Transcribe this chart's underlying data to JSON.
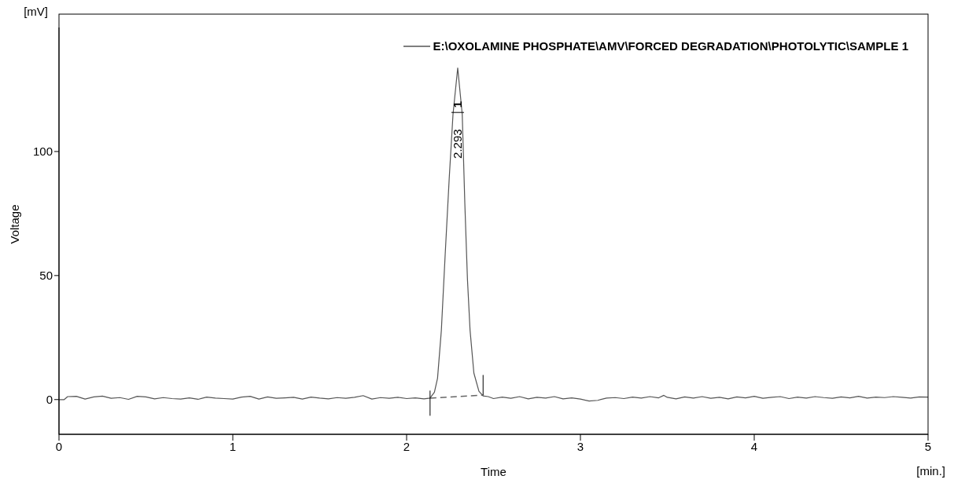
{
  "chart_data": {
    "type": "line",
    "xlabel": "Time",
    "ylabel": "Voltage",
    "xlim": [
      0,
      5
    ],
    "ylim": [
      -14,
      150
    ],
    "xticks": [
      0,
      1,
      2,
      3,
      4,
      5
    ],
    "yticks": [
      0,
      50,
      100
    ],
    "legend": "top right",
    "marker": "none",
    "line_style": "solid",
    "annotations": [
      "[mV]",
      "[min.]",
      {
        "text": "1",
        "x": 2.294,
        "y": 133.7
      },
      "2.293"
    ],
    "series": [
      {
        "name": "E:\\OXOLAMINE PHOSPHATE\\AMV\\FORCED DEGRADATION\\PHOTOLYTIC\\SAMPLE 1",
        "color": "#555555",
        "x": [
          0,
          0.03,
          0.05,
          0.1,
          0.15,
          0.2,
          0.25,
          0.3,
          0.35,
          0.4,
          0.45,
          0.5,
          0.55,
          0.6,
          0.65,
          0.7,
          0.75,
          0.8,
          0.85,
          0.9,
          0.95,
          1,
          1.05,
          1.1,
          1.15,
          1.2,
          1.25,
          1.3,
          1.35,
          1.4,
          1.45,
          1.5,
          1.55,
          1.6,
          1.65,
          1.7,
          1.75,
          1.8,
          1.85,
          1.9,
          1.95,
          2,
          2.05,
          2.1,
          2.135,
          2.16,
          2.178,
          2.2,
          2.222,
          2.245,
          2.267,
          2.294,
          2.32,
          2.335,
          2.35,
          2.365,
          2.387,
          2.416,
          2.44,
          2.47,
          2.5,
          2.55,
          2.6,
          2.65,
          2.7,
          2.75,
          2.8,
          2.85,
          2.9,
          2.95,
          3,
          3.05,
          3.1,
          3.15,
          3.2,
          3.25,
          3.3,
          3.35,
          3.4,
          3.45,
          3.48,
          3.5,
          3.55,
          3.6,
          3.65,
          3.7,
          3.75,
          3.8,
          3.85,
          3.9,
          3.95,
          4,
          4.05,
          4.1,
          4.15,
          4.2,
          4.25,
          4.3,
          4.35,
          4.4,
          4.45,
          4.5,
          4.55,
          4.6,
          4.65,
          4.7,
          4.75,
          4.8,
          4.85,
          4.9,
          4.95,
          5
        ],
        "values": [
          0,
          0,
          1.2,
          1.3,
          0.2,
          1.1,
          1.4,
          0.5,
          0.8,
          0.1,
          1.3,
          1.1,
          0.3,
          0.8,
          0.4,
          0.2,
          0.7,
          0.1,
          1,
          0.6,
          0.4,
          0.2,
          1,
          1.3,
          0.2,
          1.1,
          0.5,
          0.7,
          0.9,
          0.2,
          1,
          0.6,
          0.3,
          0.8,
          0.5,
          0.9,
          1.6,
          0.2,
          0.8,
          0.5,
          0.9,
          0.4,
          0.7,
          0.3,
          0.6,
          3,
          8.6,
          28,
          58.6,
          89,
          115,
          133.7,
          115,
          79,
          48.5,
          28,
          10.7,
          3.4,
          1.5,
          1.2,
          0.4,
          1,
          0.5,
          1.2,
          0.3,
          0.9,
          0.6,
          1.2,
          0.3,
          0.7,
          0.2,
          -0.6,
          -0.3,
          0.6,
          0.8,
          0.4,
          1,
          0.6,
          1.2,
          0.7,
          1.7,
          0.9,
          0.3,
          1.1,
          0.6,
          1.2,
          0.5,
          0.9,
          0.3,
          1.1,
          0.7,
          1.3,
          0.5,
          0.9,
          1.2,
          0.4,
          1,
          0.6,
          1.2,
          0.8,
          0.5,
          1.1,
          0.7,
          1.3,
          0.6,
          1,
          0.8,
          1.2,
          0.9,
          0.6,
          1.1,
          1
        ]
      },
      {
        "type": "line",
        "color": "#666666",
        "line_style": "dashed",
        "x": [
          2.135,
          2.44
        ],
        "values": [
          0.6,
          1.8
        ]
      }
    ]
  }
}
